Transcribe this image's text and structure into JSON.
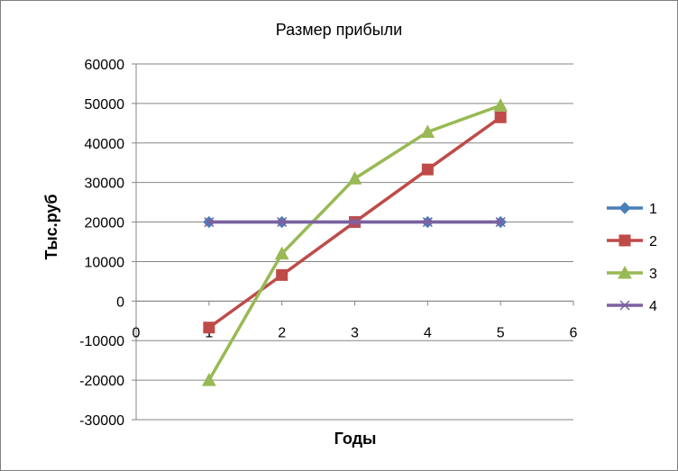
{
  "chart_data": {
    "type": "scatter",
    "title": "Размер прибыли",
    "xlabel": "Годы",
    "ylabel": "Тыс.руб",
    "xlim": [
      0,
      6
    ],
    "ylim": [
      -30000,
      60000
    ],
    "x_ticks": [
      0,
      1,
      2,
      3,
      4,
      5,
      6
    ],
    "y_ticks": [
      -30000,
      -20000,
      -10000,
      0,
      10000,
      20000,
      30000,
      40000,
      50000,
      60000
    ],
    "grid": "horizontal",
    "legend_position": "right",
    "series": [
      {
        "name": "1",
        "color": "#4a7ebb",
        "marker": "diamond",
        "x": [
          1,
          2,
          3,
          4,
          5
        ],
        "y": [
          20000,
          20000,
          20000,
          20000,
          20000
        ]
      },
      {
        "name": "2",
        "color": "#be4b48",
        "marker": "square",
        "x": [
          1,
          2,
          3,
          4,
          5
        ],
        "y": [
          -6700,
          6600,
          20000,
          33300,
          46500
        ]
      },
      {
        "name": "3",
        "color": "#98b954",
        "marker": "triangle",
        "x": [
          1,
          2,
          3,
          4,
          5
        ],
        "y": [
          -20000,
          12000,
          31000,
          42800,
          49500
        ]
      },
      {
        "name": "4",
        "color": "#7d60a0",
        "marker": "x",
        "x": [
          1,
          2,
          3,
          4,
          5
        ],
        "y": [
          20000,
          20000,
          20000,
          20000,
          20000
        ]
      }
    ]
  }
}
